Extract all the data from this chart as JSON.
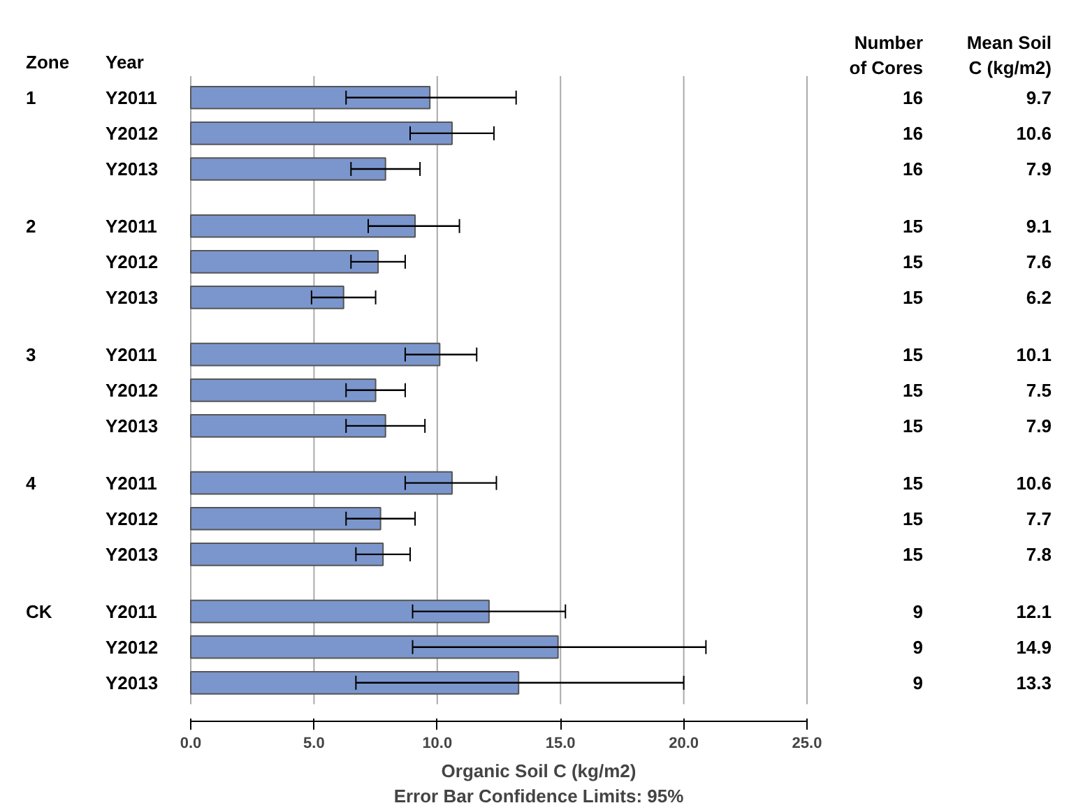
{
  "chart_data": {
    "type": "bar",
    "orientation": "horizontal",
    "xlabel": "Organic Soil C (kg/m2)",
    "categories": [
      "Y2011",
      "Y2012",
      "Y2013",
      "Y2011",
      "Y2012",
      "Y2013",
      "Y2011",
      "Y2012",
      "Y2013",
      "Y2011",
      "Y2012",
      "Y2013",
      "Y2011",
      "Y2012",
      "Y2013"
    ],
    "values": [
      9.7,
      10.6,
      7.9,
      9.1,
      7.6,
      6.2,
      10.1,
      7.5,
      7.9,
      10.6,
      7.7,
      7.8,
      12.1,
      14.9,
      13.3
    ],
    "errors": [
      [
        6.3,
        13.2
      ],
      [
        8.9,
        12.3
      ],
      [
        6.5,
        9.3
      ],
      [
        7.2,
        10.9
      ],
      [
        6.5,
        8.7
      ],
      [
        4.9,
        7.5
      ],
      [
        8.7,
        11.6
      ],
      [
        6.3,
        8.7
      ],
      [
        6.3,
        9.5
      ],
      [
        8.7,
        12.4
      ],
      [
        6.3,
        9.1
      ],
      [
        6.7,
        8.9
      ],
      [
        9.0,
        15.2
      ],
      [
        9.0,
        20.9
      ],
      [
        6.7,
        20.0
      ]
    ],
    "color": "#7b96cc",
    "grid": "x",
    "data_labels": true,
    "xlim": [
      0,
      25
    ],
    "xticks": [
      {
        "value": 0,
        "label": "0.0"
      },
      {
        "value": 5,
        "label": "5.0"
      },
      {
        "value": 10,
        "label": "10.0"
      },
      {
        "value": 15,
        "label": "15.0"
      },
      {
        "value": 20,
        "label": "20.0"
      },
      {
        "value": 25,
        "label": "25.0"
      }
    ],
    "annotations": [
      "Zone",
      "Year",
      "Number\nof Cores",
      "Mean Soil\nC (kg/m2)",
      "Error Bar Confidence Limits: 95%",
      "1",
      "2",
      "3",
      "4",
      "CK",
      "16",
      "16",
      "16",
      "15",
      "15",
      "15",
      "15",
      "15",
      "15",
      "15",
      "15",
      "15",
      "9",
      "9",
      "9"
    ]
  }
}
